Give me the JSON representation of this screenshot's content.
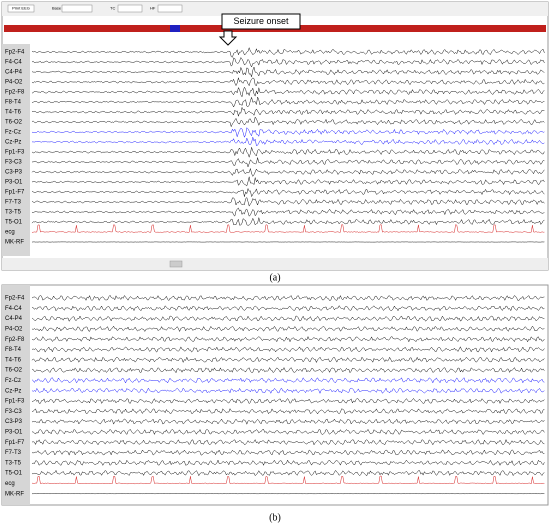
{
  "panel_a": {
    "toolbar": [
      "Print EEG",
      "Base",
      "TC",
      "HF"
    ],
    "annotation": "Seizure onset",
    "channels": [
      "Fp2-F4",
      "F4-C4",
      "C4-P4",
      "P4-O2",
      "Fp2-F8",
      "F8-T4",
      "T4-T6",
      "T6-O2",
      "Fz-Cz",
      "Cz-Pz",
      "Fp1-F3",
      "F3-C3",
      "C3-P3",
      "P3-O1",
      "Fp1-F7",
      "F7-T3",
      "T3-T5",
      "T5-O1",
      "ecg",
      "MK-RF"
    ],
    "caption": "(a)"
  },
  "panel_b": {
    "channels": [
      "Fp2-F4",
      "F4-C4",
      "C4-P4",
      "P4-O2",
      "Fp2-F8",
      "F8-T4",
      "T4-T6",
      "T6-O2",
      "Fz-Cz",
      "Cz-Pz",
      "Fp1-F3",
      "F3-C3",
      "C3-P3",
      "P3-O1",
      "Fp1-F7",
      "F7-T3",
      "T3-T5",
      "T5-O1",
      "ecg",
      "MK-RF"
    ],
    "caption": "(b)"
  }
}
